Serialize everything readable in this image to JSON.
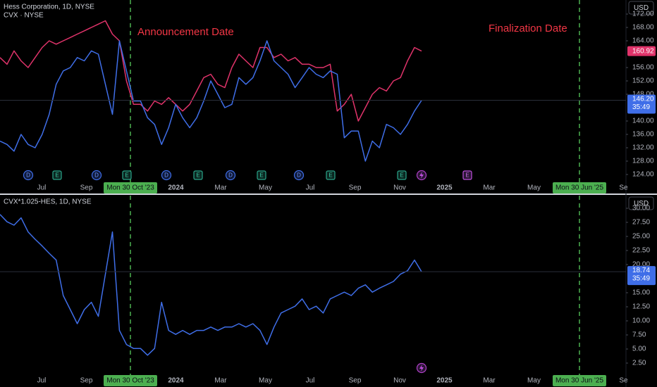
{
  "chart_data": [
    {
      "type": "line",
      "currency": "USD",
      "annotations": [
        "Announcement Date",
        "Finalization Date"
      ],
      "markers": [
        "Mon 30 Oct '23",
        "Mon 30 Jun '25"
      ],
      "xticks": [
        "Jul",
        "Sep",
        null,
        "2024",
        "Mar",
        "May",
        "Jul",
        "Sep",
        "Nov",
        "2025",
        "Mar",
        "May",
        null,
        "Se"
      ],
      "ylim": [
        122,
        176
      ],
      "yticks": [
        {
          "value": 124,
          "label": "124.00"
        },
        {
          "value": 128,
          "label": "128.00"
        },
        {
          "value": 132,
          "label": "132.00"
        },
        {
          "value": 136,
          "label": "136.00"
        },
        {
          "value": 140,
          "label": "140.00"
        },
        {
          "value": 148,
          "label": "148.00"
        },
        {
          "value": 152,
          "label": "152.00"
        },
        {
          "value": 156,
          "label": "156.00"
        },
        {
          "value": 164,
          "label": "164.00"
        },
        {
          "value": 168,
          "label": "168.00"
        },
        {
          "value": 172,
          "label": "172.00"
        }
      ],
      "event_icons": [
        "D",
        "E",
        "D",
        "E",
        "D",
        "E",
        "D",
        "E",
        "D",
        "E",
        "E",
        "E"
      ],
      "series": [
        {
          "name": "Hess Corporation, 1D, NYSE",
          "color": "#e0336a",
          "values": [
            159,
            157,
            161,
            158,
            156,
            159,
            162,
            164,
            163,
            164,
            165,
            166,
            167,
            168,
            169,
            170,
            166,
            164,
            152,
            145,
            145,
            143,
            146,
            145,
            147,
            145,
            143,
            145,
            149,
            153,
            154,
            151,
            150,
            156,
            160,
            158,
            156,
            162,
            162,
            159,
            160,
            158,
            159,
            157,
            157,
            156,
            156,
            157,
            143,
            145,
            148,
            140,
            144,
            148,
            150,
            149,
            152,
            153,
            158,
            162,
            160.92
          ]
        },
        {
          "name": "CVX · NYSE",
          "color": "#3f6ee8",
          "last_label": "146.20",
          "countdown": "35:49",
          "values": [
            134,
            133,
            131,
            136,
            133,
            132,
            136,
            142,
            151,
            155,
            156,
            159,
            158,
            161,
            160,
            151,
            142,
            164,
            155,
            146,
            146,
            141,
            139,
            133,
            138,
            145,
            141,
            138,
            141,
            146,
            152,
            148,
            144,
            145,
            153,
            151,
            153,
            158,
            164,
            158,
            156,
            154,
            150,
            153,
            156,
            154,
            153,
            155,
            154,
            135,
            137,
            137,
            128,
            134,
            132,
            139,
            138,
            136,
            139,
            143,
            146.2
          ]
        }
      ]
    },
    {
      "type": "line",
      "currency": "USD",
      "markers": [
        "Mon 30 Oct '23",
        "Mon 30 Jun '25"
      ],
      "xticks": [
        "Jul",
        "Sep",
        null,
        "2024",
        "Mar",
        "May",
        "Jul",
        "Sep",
        "Nov",
        "2025",
        "Mar",
        "May",
        null,
        "Se"
      ],
      "ylim": [
        0.5,
        32
      ],
      "yticks": [
        {
          "value": 2.5,
          "label": "2.50"
        },
        {
          "value": 5,
          "label": "5.00"
        },
        {
          "value": 7.5,
          "label": "7.50"
        },
        {
          "value": 10,
          "label": "10.00"
        },
        {
          "value": 12.5,
          "label": "12.50"
        },
        {
          "value": 15,
          "label": "15.00"
        },
        {
          "value": 20,
          "label": "20.00"
        },
        {
          "value": 22.5,
          "label": "22.50"
        },
        {
          "value": 25,
          "label": "25.00"
        },
        {
          "value": 27.5,
          "label": "27.50"
        },
        {
          "value": 30,
          "label": "30.00"
        }
      ],
      "series": [
        {
          "name": "CVX*1.025-HES, 1D, NYSE",
          "color": "#3f6ee8",
          "countdown": "35:49",
          "values": [
            28.9,
            27.6,
            27,
            28.3,
            25.8,
            24.5,
            23.3,
            22,
            20.8,
            14.5,
            12,
            9.5,
            12,
            13.3,
            10.8,
            18.3,
            25.8,
            8.3,
            5.8,
            5.1,
            5.1,
            3.9,
            5.1,
            13.3,
            8.3,
            7.6,
            8.3,
            7.6,
            8.3,
            8.3,
            8.9,
            8.3,
            8.9,
            8.9,
            9.5,
            8.9,
            9.5,
            8.3,
            5.8,
            8.9,
            11.4,
            12,
            12.6,
            13.9,
            12,
            12.6,
            11.4,
            13.9,
            14.5,
            15.1,
            14.5,
            15.8,
            16.4,
            15.1,
            15.8,
            16.4,
            17,
            18.3,
            18.9,
            20.8,
            18.74
          ]
        }
      ]
    }
  ]
}
